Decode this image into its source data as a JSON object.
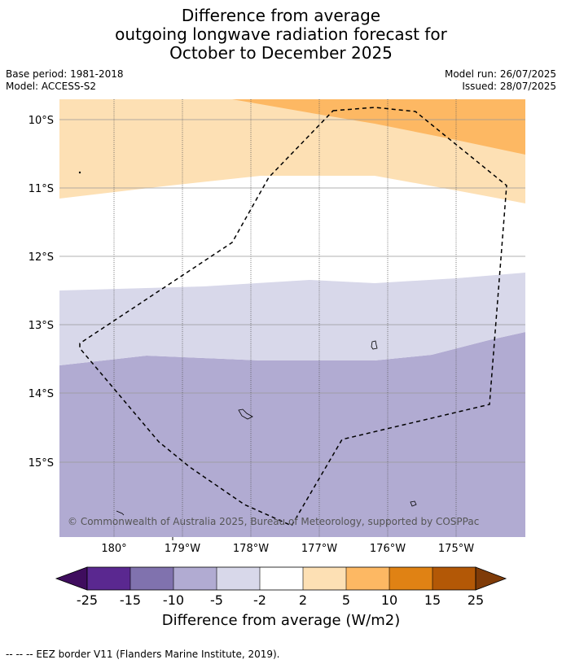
{
  "title": {
    "line1": "Difference from average",
    "line2": "outgoing longwave radiation forecast for",
    "line3": "October to December 2025"
  },
  "meta": {
    "base_period": "Base period: 1981-2018",
    "model": "Model: ACCESS-S2",
    "model_run": "Model run: 26/07/2025",
    "issued": "Issued: 28/07/2025"
  },
  "map": {
    "lat_labels": [
      "10°S",
      "11°S",
      "12°S",
      "13°S",
      "14°S",
      "15°S"
    ],
    "lon_labels": [
      "180°",
      "179°W",
      "178°W",
      "177°W",
      "176°W",
      "175°W"
    ],
    "copyright": "© Commonwealth of Australia 2025, Bureau of Meteorology, supported by COSPPac"
  },
  "colorbar": {
    "ticks": [
      "-25",
      "-15",
      "-10",
      "-5",
      "-2",
      "2",
      "5",
      "10",
      "15",
      "25"
    ],
    "colors": [
      "#3f0d5e",
      "#5a2890",
      "#8072ae",
      "#b1abd2",
      "#d8d8ea",
      "#ffffff",
      "#fde0b4",
      "#fdb863",
      "#e08214",
      "#b35806",
      "#7f3b08"
    ],
    "label": "Difference from average (W/m2)"
  },
  "legend": {
    "eez_text": "--  --  -- EEZ border V11 (Flanders Marine Institute, 2019)."
  }
}
